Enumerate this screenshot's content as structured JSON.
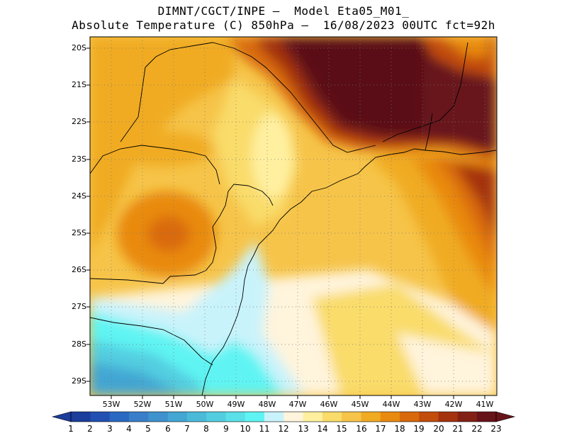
{
  "header": {
    "line1": "DIMNT/CGCT/INPE —  Model Eta05_M01_",
    "line2": "Absolute Temperature (C) 850hPa —  16/08/2023 00UTC fct=92h"
  },
  "map": {
    "lat_labels": [
      "20S",
      "21S",
      "22S",
      "23S",
      "24S",
      "25S",
      "26S",
      "27S",
      "28S",
      "29S"
    ],
    "lon_labels": [
      "53W",
      "52W",
      "51W",
      "50W",
      "49W",
      "48W",
      "47W",
      "46W",
      "45W",
      "44W",
      "43W",
      "42W",
      "41W"
    ],
    "lat_range": [
      -29.5,
      -19.8
    ],
    "lon_range": [
      -53.8,
      -40.5
    ],
    "gridlines": "dotted"
  },
  "colorbar": {
    "labels": [
      "1",
      "2",
      "3",
      "4",
      "5",
      "6",
      "7",
      "8",
      "9",
      "10",
      "11",
      "12",
      "13",
      "14",
      "15",
      "16",
      "17",
      "18",
      "19",
      "20",
      "21",
      "22",
      "23"
    ],
    "colors": [
      "#1b3d9b",
      "#2150b2",
      "#2a68c2",
      "#3a7ec9",
      "#3f92cd",
      "#43a6d3",
      "#4bbad9",
      "#52cde0",
      "#5ae0e8",
      "#5ff4f3",
      "#c9f3fb",
      "#fff4dc",
      "#fff0a0",
      "#f9dc6a",
      "#f6c449",
      "#f0ab22",
      "#e98a10",
      "#d96a0b",
      "#c24c0c",
      "#a4320f",
      "#832015",
      "#67131a"
    ]
  },
  "colors": {
    "warm_max": "#5a0f18",
    "cold": "#5ff4f3",
    "neutral": "#fff4dc"
  }
}
